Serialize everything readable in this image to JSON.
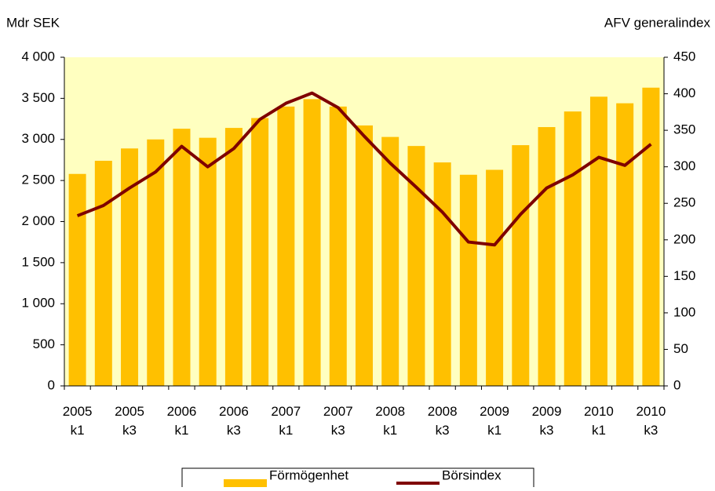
{
  "chart_data": {
    "type": "bar",
    "y_label": "Mdr SEK",
    "y2_label": "AFV generalindex",
    "categories": [
      "2005 k1",
      null,
      "2005 k3",
      null,
      "2006 k1",
      null,
      "2006 k3",
      null,
      "2007 k1",
      null,
      "2007 k3",
      null,
      "2008 k1",
      null,
      "2008 k3",
      null,
      "2009 k1",
      null,
      "2009 k3",
      null,
      "2010 k1",
      null,
      "2010 k3"
    ],
    "series": [
      {
        "name": "Förmögenhet",
        "type": "bar",
        "color": "#ffc000",
        "values": [
          2580,
          2740,
          2890,
          3000,
          3130,
          3020,
          3140,
          3260,
          3400,
          3490,
          3400,
          3170,
          3030,
          2920,
          2720,
          2570,
          2630,
          2930,
          3150,
          3340,
          3520,
          3440,
          3630
        ]
      },
      {
        "name": "Börsindex",
        "type": "line",
        "axis": "y2",
        "color": "#7f0000",
        "values": [
          233,
          247,
          271,
          293,
          328,
          300,
          325,
          365,
          387,
          401,
          381,
          342,
          305,
          272,
          238,
          197,
          193,
          235,
          271,
          289,
          313,
          302,
          331
        ]
      }
    ],
    "ylim": [
      0,
      4000
    ],
    "yticks": [
      0,
      500,
      {
        "value": 1000,
        "label": "1 000"
      },
      {
        "value": 1500,
        "label": "1 500"
      },
      {
        "value": 2000,
        "label": "2 000"
      },
      {
        "value": 2500,
        "label": "2 500"
      },
      {
        "value": 3000,
        "label": "3 000"
      },
      {
        "value": 3500,
        "label": "3 500"
      },
      {
        "value": 4000,
        "label": "4 000"
      }
    ],
    "y2lim": [
      0,
      450
    ],
    "y2ticks": [
      0,
      50,
      100,
      150,
      200,
      250,
      300,
      350,
      400,
      450
    ],
    "legend": "bottom"
  }
}
